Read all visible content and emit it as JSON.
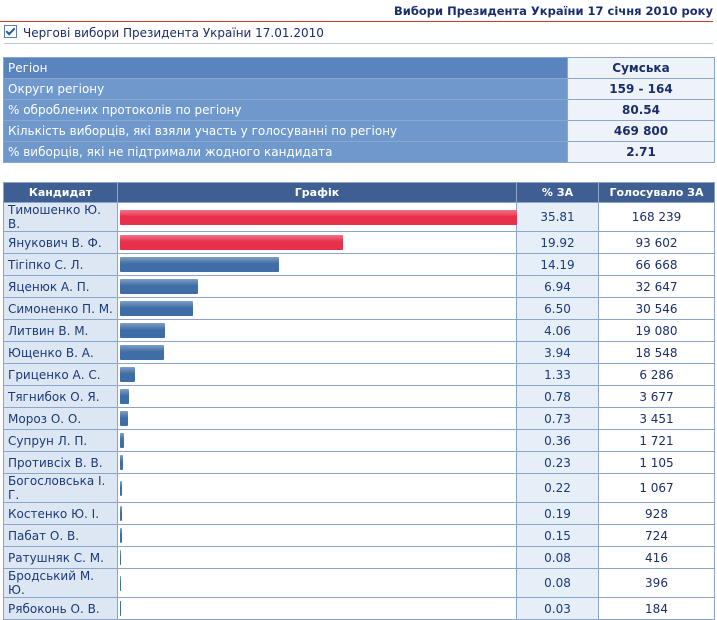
{
  "header": {
    "title": "Вибори Президента України 17 січня 2010 року",
    "checkbox_label": "Чергові вибори Президента України 17.01.2010"
  },
  "summary": {
    "rows": [
      [
        "Регіон",
        "Сумська"
      ],
      [
        "Округи регіону",
        "159 - 164"
      ],
      [
        "% оброблених протоколів по регіону",
        "80.54"
      ],
      [
        "Кількість виборців, які взяли участь у голосуванні по регіону",
        "469 800"
      ],
      [
        "% виборців, які не підтримали жодного кандидата",
        "2.71"
      ]
    ]
  },
  "results": {
    "headers": [
      "Кандидат",
      "Графік",
      "% ЗА",
      "Голосувало ЗА"
    ],
    "rows": [
      {
        "name": "Тимошенко Ю. В.",
        "pct": 35.81,
        "votes": "168 239",
        "color": "#e8304c"
      },
      {
        "name": "Янукович В. Ф.",
        "pct": 19.92,
        "votes": "93 602",
        "color": "#e8304c"
      },
      {
        "name": "Тігіпко С. Л.",
        "pct": 14.19,
        "votes": "66 668",
        "color": "#3f6ea6"
      },
      {
        "name": "Яценюк А. П.",
        "pct": 6.94,
        "votes": "32 647",
        "color": "#3f6ea6"
      },
      {
        "name": "Симоненко П. М.",
        "pct": {
          "value": 6.5,
          "label": "6.50"
        },
        "votes": "30 546",
        "color": "#3f6ea6"
      },
      {
        "name": "Литвин В. М.",
        "pct": 4.06,
        "votes": "19 080",
        "color": "#3f6ea6"
      },
      {
        "name": "Ющенко В. А.",
        "pct": 3.94,
        "votes": "18 548",
        "color": "#3f6ea6"
      },
      {
        "name": "Гриценко А. С.",
        "pct": 1.33,
        "votes": "6 286",
        "color": "#3f6ea6"
      },
      {
        "name": "Тягнибок О. Я.",
        "pct": 0.78,
        "votes": "3 677",
        "color": "#3f6ea6"
      },
      {
        "name": "Мороз О. О.",
        "pct": 0.73,
        "votes": "3 451",
        "color": "#3f6ea6"
      },
      {
        "name": "Супрун Л. П.",
        "pct": 0.36,
        "votes": "1 721",
        "color": "#3f6ea6"
      },
      {
        "name": "Противсіх В. В.",
        "pct": 0.23,
        "votes": "1 105",
        "color": "#3f6ea6"
      },
      {
        "name": "Богословська І. Г.",
        "pct": 0.22,
        "votes": "1 067",
        "color": "#3f6ea6"
      },
      {
        "name": "Костенко Ю. І.",
        "pct": 0.19,
        "votes": "928",
        "color": "#3f6ea6"
      },
      {
        "name": "Пабат О. В.",
        "pct": 0.15,
        "votes": "724",
        "color": "#3f6ea6"
      },
      {
        "name": "Ратушняк С. М.",
        "pct": 0.08,
        "votes": "416",
        "color": "#3f6ea6"
      },
      {
        "name": "Бродський М. Ю.",
        "pct": 0.08,
        "votes": "396",
        "color": "#3f6ea6"
      },
      {
        "name": "Рябоконь О. В.",
        "pct": 0.03,
        "votes": "184",
        "color": "#3f6ea6"
      }
    ]
  }
}
